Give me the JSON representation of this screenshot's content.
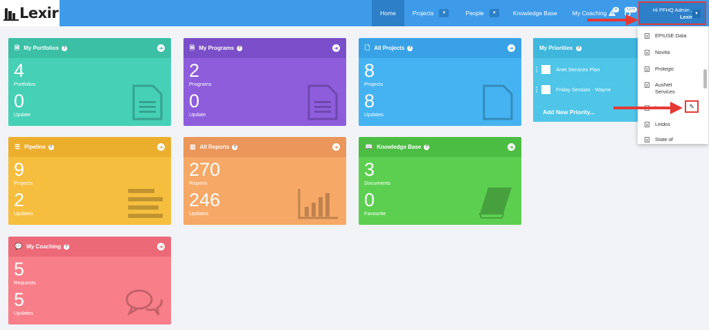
{
  "app": {
    "logo_text": "Lexir"
  },
  "nav": {
    "home": "Home",
    "projects": "Projects",
    "people": "People",
    "knowledge_base": "Knowledge Base",
    "my_coaching": "My Coaching",
    "alerts_count": "8",
    "messages_count": "1279",
    "user_greeting": "Hi PFHQ Admin ,",
    "user_org": "Lexir"
  },
  "cards": {
    "portfolios": {
      "title": "My Portfolios",
      "n1": "4",
      "l1": "Portfolios",
      "n2": "0",
      "l2": "Update"
    },
    "programs": {
      "title": "My Programs",
      "n1": "2",
      "l1": "Programs",
      "n2": "0",
      "l2": "Update"
    },
    "projects": {
      "title": "All Projects",
      "n1": "8",
      "l1": "Projects",
      "n2": "8",
      "l2": "Updates"
    },
    "pipeline": {
      "title": "Pipeline",
      "n1": "9",
      "l1": "Projects",
      "n2": "2",
      "l2": "Updates"
    },
    "reports": {
      "title": "All Reports",
      "n1": "270",
      "l1": "Reports",
      "n2": "246",
      "l2": "Updates"
    },
    "knowledge": {
      "title": "Knowledge Base",
      "n1": "3",
      "l1": "Documents",
      "n2": "0",
      "l2": "Favourite"
    },
    "coaching": {
      "title": "My Coaching",
      "n1": "5",
      "l1": "Requests",
      "n2": "5",
      "l2": "Updates"
    }
  },
  "priorities": {
    "title": "My Priorities",
    "items": [
      "Anet Services Plan",
      "Friday Session - Wayne"
    ],
    "add_label": "Add New Priority..."
  },
  "dropdown": {
    "items": [
      "EPIUSE Data",
      "Novita",
      "Protegic",
      "AusNet Services",
      "Lexir",
      "Leidos",
      "State of"
    ]
  },
  "colors": {
    "topbar": "#3d9be9",
    "highlight": "#e53935"
  }
}
